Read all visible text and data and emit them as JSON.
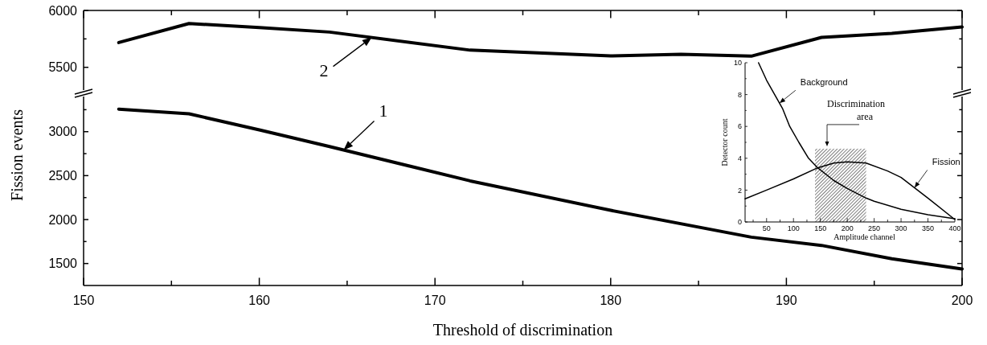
{
  "chart_data": [
    {
      "type": "line",
      "xlim": [
        150,
        200
      ],
      "xticks": [
        150,
        {
          "value": 155,
          "label": null
        },
        160,
        {
          "value": 165,
          "label": null
        },
        170,
        {
          "value": 175,
          "label": null
        },
        180,
        {
          "value": 185,
          "label": null
        },
        190,
        {
          "value": 195,
          "label": null
        },
        200
      ],
      "ylim": [
        5300,
        6000
      ],
      "yticks": [
        5500,
        {
          "value": 5750,
          "label": null
        },
        6000
      ],
      "tick_labels": "y",
      "series": [
        {
          "name": "2",
          "color": "#000000",
          "x": [
            152,
            156,
            160,
            164,
            172,
            180,
            184,
            188,
            192,
            196,
            200
          ],
          "values": [
            5718,
            5885,
            5850,
            5810,
            5651,
            5600,
            5615,
            5598,
            5763,
            5799,
            5855
          ]
        }
      ]
    },
    {
      "type": "line",
      "xlabel": "Threshold of discrimination",
      "ylabel": "Fission events",
      "xlim": [
        150,
        200
      ],
      "xticks": [
        150,
        {
          "value": 155,
          "label": null
        },
        160,
        {
          "value": 165,
          "label": null
        },
        170,
        {
          "value": 175,
          "label": null
        },
        180,
        {
          "value": 185,
          "label": null
        },
        190,
        {
          "value": 195,
          "label": null
        },
        200
      ],
      "ylim": [
        1250,
        3400
      ],
      "yticks": [
        1500,
        {
          "value": 1750,
          "label": null
        },
        2000,
        {
          "value": 2250,
          "label": null
        },
        2500,
        {
          "value": 2750,
          "label": null
        },
        3000,
        {
          "value": 3250,
          "label": null
        }
      ],
      "series": [
        {
          "name": "1",
          "color": "#000000",
          "x": [
            152,
            156,
            160,
            164,
            172,
            180,
            188,
            192,
            196,
            200
          ],
          "values": [
            3257,
            3203,
            3020,
            2830,
            2440,
            2105,
            1800,
            1706,
            1554,
            1438
          ]
        }
      ]
    },
    {
      "type": "line",
      "xlabel": "Amplitude channel",
      "ylabel": "Detector count",
      "xlim": [
        10,
        400
      ],
      "xticks": [
        {
          "value": 25,
          "label": null
        },
        50,
        {
          "value": 75,
          "label": null
        },
        100,
        {
          "value": 125,
          "label": null
        },
        150,
        {
          "value": 175,
          "label": null
        },
        200,
        {
          "value": 225,
          "label": null
        },
        250,
        {
          "value": 275,
          "label": null
        },
        300,
        {
          "value": 325,
          "label": null
        },
        350,
        {
          "value": 375,
          "label": null
        },
        400
      ],
      "ylim": [
        0,
        10
      ],
      "yticks": [
        0,
        {
          "value": 1,
          "label": null
        },
        2,
        {
          "value": 3,
          "label": null
        },
        4,
        {
          "value": 5,
          "label": null
        },
        6,
        {
          "value": 7,
          "label": null
        },
        8,
        {
          "value": 9,
          "label": null
        },
        10
      ],
      "bands": [
        {
          "axis": "x",
          "from": 140,
          "to": 235,
          "label": "Discrimination area",
          "color": "#000000"
        }
      ],
      "series": [
        {
          "name": "Background",
          "color": "#000000",
          "x": [
            35,
            50,
            65,
            80,
            93,
            110,
            128,
            145,
            175,
            200,
            235,
            250,
            300,
            350,
            400
          ],
          "values": [
            10,
            8.9,
            8,
            7.1,
            6,
            5,
            4,
            3.4,
            2.6,
            2.1,
            1.5,
            1.3,
            0.8,
            0.45,
            0.2
          ]
        },
        {
          "name": "Fission",
          "color": "#000000",
          "x": [
            10,
            50,
            100,
            145,
            175,
            200,
            235,
            275,
            300,
            350,
            400
          ],
          "values": [
            1.45,
            2.0,
            2.7,
            3.4,
            3.7,
            3.78,
            3.7,
            3.2,
            2.8,
            1.5,
            0.15
          ]
        }
      ]
    }
  ]
}
